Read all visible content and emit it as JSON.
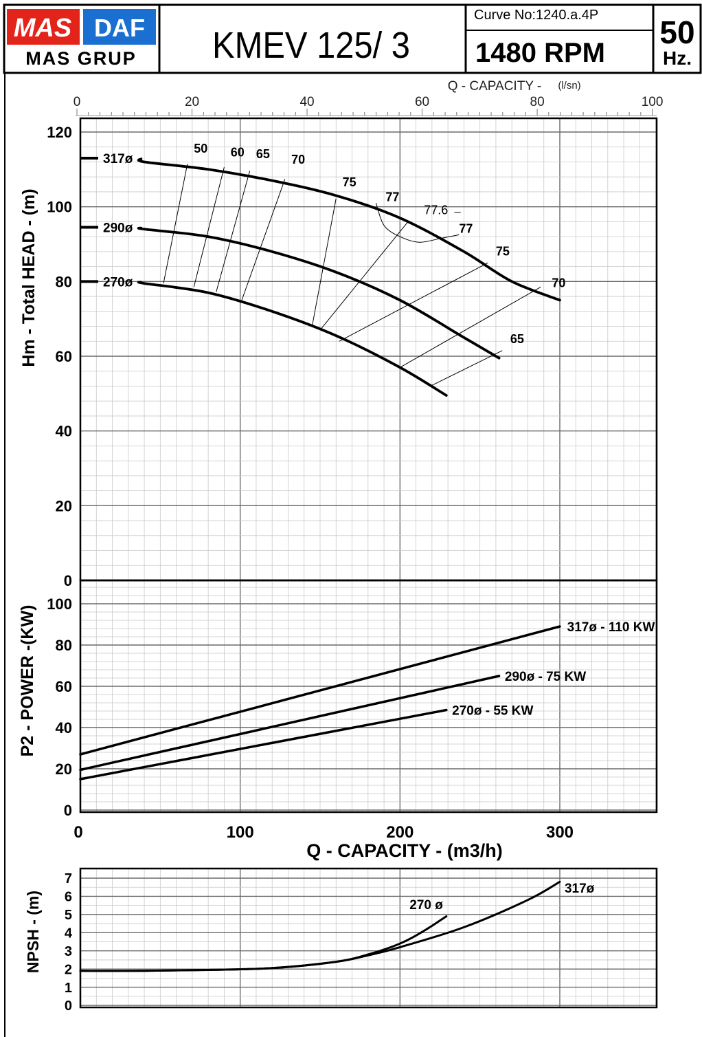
{
  "header": {
    "logo_left": "MAS",
    "logo_right": "DAF",
    "logo_sub": "MAS GRUP",
    "model": "KMEV 125/ 3",
    "curve_no": "Curve No:1240.a.4P",
    "rpm": "1480 RPM",
    "freq_value": "50",
    "freq_unit": "Hz.",
    "brand_colors": {
      "red": "#e3241b",
      "blue": "#1a6fd0"
    }
  },
  "chart_data": [
    {
      "id": "head",
      "type": "line",
      "ylabel": "Hm - Total HEAD - (m)",
      "top_axis_label": "Q - CAPACITY -",
      "top_axis_unit": "(l/sn)",
      "top_ticks": [
        0,
        20,
        40,
        60,
        80,
        100
      ],
      "y_ticks": [
        0,
        20,
        40,
        60,
        80,
        100,
        120
      ],
      "xlim": [
        0,
        360
      ],
      "ylim": [
        0,
        125
      ],
      "series": [
        {
          "name": "317ø",
          "x": [
            0,
            40,
            80,
            120,
            160,
            200,
            240,
            270,
            300
          ],
          "y": [
            113,
            112,
            110,
            107,
            103,
            97,
            88,
            80,
            75
          ]
        },
        {
          "name": "290ø",
          "x": [
            0,
            40,
            80,
            120,
            160,
            200,
            240,
            262
          ],
          "y": [
            94.5,
            94,
            92,
            88,
            82.5,
            75,
            65,
            59.5
          ]
        },
        {
          "name": "270ø",
          "x": [
            0,
            40,
            80,
            120,
            160,
            200,
            229
          ],
          "y": [
            80,
            79.5,
            77,
            72,
            65.5,
            57,
            49.5
          ]
        }
      ],
      "efficiency_labels": [
        "50",
        "60",
        "65",
        "70",
        "75",
        "77",
        "77.6",
        "77",
        "75",
        "70",
        "65"
      ],
      "efficiency_lines": [
        {
          "x": [
            67,
            52
          ],
          "y": [
            111.5,
            79.5
          ]
        },
        {
          "x": [
            90,
            71
          ],
          "y": [
            110.6,
            78.5
          ]
        },
        {
          "x": [
            106,
            85
          ],
          "y": [
            109.6,
            77.2
          ]
        },
        {
          "x": [
            128,
            101
          ],
          "y": [
            107.4,
            75
          ]
        },
        {
          "x": [
            160,
            145
          ],
          "y": [
            102.2,
            68
          ]
        },
        {
          "x": [
            205,
            150
          ],
          "y": [
            96.0,
            67
          ]
        },
        {
          "x": [
            255,
            162
          ],
          "y": [
            85.0,
            64
          ]
        },
        {
          "x": [
            288,
            200
          ],
          "y": [
            78.5,
            57
          ]
        },
        {
          "x": [
            264,
            219
          ],
          "y": [
            61.5,
            52
          ]
        }
      ],
      "efficiency_curve": {
        "x": [
          185,
          190,
          200,
          212,
          225,
          237
        ],
        "y": [
          101,
          95,
          92,
          90.5,
          91.5,
          92.5
        ]
      }
    },
    {
      "id": "power",
      "type": "line",
      "ylabel": "P2 - POWER -(KW)",
      "xlabel": "Q - CAPACITY - (m3/h)",
      "x_ticks": [
        0,
        100,
        200,
        300
      ],
      "y_ticks": [
        0,
        20,
        40,
        60,
        80,
        100
      ],
      "xlim": [
        0,
        360
      ],
      "ylim": [
        0,
        112
      ],
      "series": [
        {
          "name": "317ø - 110 KW",
          "x": [
            0,
            300
          ],
          "y": [
            27,
            89
          ]
        },
        {
          "name": "290ø - 75 KW",
          "x": [
            0,
            262
          ],
          "y": [
            19.5,
            65
          ]
        },
        {
          "name": "270ø - 55 KW",
          "x": [
            0,
            229
          ],
          "y": [
            15,
            48.5
          ]
        }
      ]
    },
    {
      "id": "npsh",
      "type": "line",
      "ylabel": "NPSH - (m)",
      "y_ticks": [
        0,
        1,
        2,
        3,
        4,
        5,
        6,
        7
      ],
      "xlim": [
        0,
        360
      ],
      "ylim": [
        0,
        7.5
      ],
      "series": [
        {
          "name": "317ø",
          "x": [
            0,
            40,
            80,
            120,
            160,
            180,
            200,
            240,
            280,
            300
          ],
          "y": [
            1.9,
            1.9,
            1.95,
            2.05,
            2.4,
            2.75,
            3.2,
            4.3,
            5.8,
            6.8
          ]
        },
        {
          "name": "270 ø",
          "x": [
            0,
            40,
            80,
            120,
            160,
            180,
            200,
            215,
            229
          ],
          "y": [
            1.9,
            1.9,
            1.95,
            2.05,
            2.4,
            2.8,
            3.4,
            4.1,
            4.9
          ]
        }
      ]
    }
  ]
}
